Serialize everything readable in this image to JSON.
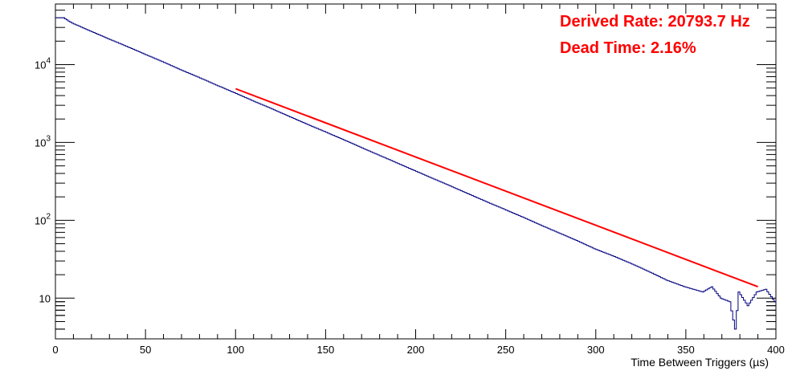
{
  "chart_data": {
    "type": "line",
    "xlabel": "Time Between Triggers (µs)",
    "xlim": [
      0,
      400
    ],
    "ylim": [
      3,
      60000
    ],
    "yscale": "log",
    "grid": false,
    "x_ticks": [
      "0",
      "50",
      "100",
      "150",
      "200",
      "250",
      "300",
      "350",
      "400"
    ],
    "y_ticks": [
      {
        "value": 10,
        "base": "10",
        "exp": ""
      },
      {
        "value": 100,
        "base": "10",
        "exp": "2"
      },
      {
        "value": 1000,
        "base": "10",
        "exp": "3"
      },
      {
        "value": 10000,
        "base": "10",
        "exp": "4"
      }
    ],
    "histogram": {
      "x": [
        2,
        5,
        10,
        20,
        30,
        40,
        50,
        60,
        70,
        80,
        90,
        100,
        110,
        120,
        130,
        140,
        150,
        160,
        170,
        180,
        190,
        200,
        210,
        220,
        230,
        240,
        250,
        260,
        270,
        280,
        290,
        300,
        310,
        320,
        330,
        340,
        350,
        360,
        365,
        370,
        375,
        378,
        380,
        385,
        390,
        395,
        400
      ],
      "y": [
        40000,
        40000,
        34000,
        27000,
        21500,
        17200,
        13700,
        10900,
        8600,
        6900,
        5450,
        4350,
        3450,
        2750,
        2180,
        1730,
        1380,
        1100,
        870,
        690,
        548,
        435,
        346,
        275,
        218,
        173,
        138,
        110,
        87,
        69,
        55,
        43,
        35,
        28,
        22,
        17,
        14,
        12,
        14,
        10,
        9,
        4,
        12,
        8,
        12,
        13,
        9
      ]
    },
    "fit": {
      "x": [
        100,
        390
      ],
      "y": [
        4900,
        14
      ]
    },
    "colors": {
      "histogram": "#000080",
      "fit": "#ff0000",
      "annotation": "#ff0000"
    }
  },
  "annotations": {
    "rate": "Derived Rate: 20793.7 Hz",
    "dead_time": "Dead Time: 2.16%"
  }
}
